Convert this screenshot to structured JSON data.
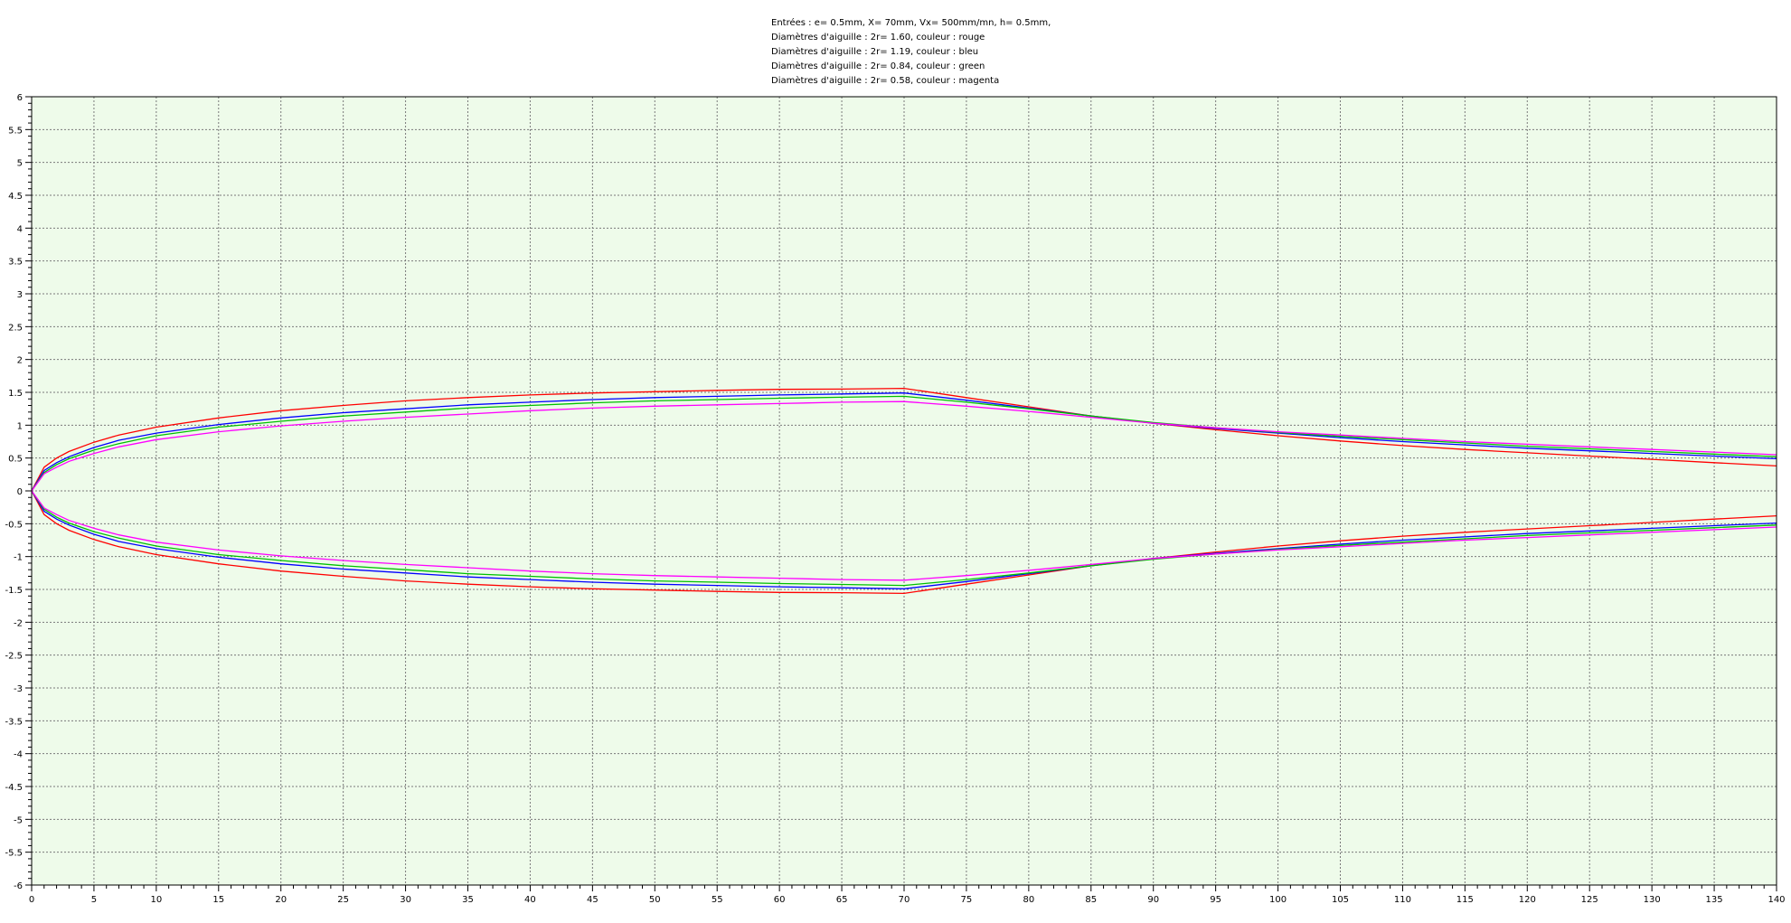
{
  "chart_data": {
    "type": "line",
    "title_lines": [
      "Entrées : e= 0.5mm,  X= 70mm,  Vx= 500mm/mn,  h= 0.5mm,",
      "Diamètres d'aiguille : 2r=  1.60, couleur : rouge",
      "Diamètres d'aiguille : 2r=  1.19, couleur : bleu",
      "Diamètres d'aiguille : 2r=  0.84, couleur : green",
      "Diamètres d'aiguille : 2r=  0.58, couleur : magenta"
    ],
    "xlabel": "",
    "ylabel": "",
    "xlim": [
      0,
      140
    ],
    "ylim": [
      -6,
      6
    ],
    "x_ticks": [
      0,
      5,
      10,
      15,
      20,
      25,
      30,
      35,
      40,
      45,
      50,
      55,
      60,
      65,
      70,
      75,
      80,
      85,
      90,
      95,
      100,
      105,
      110,
      115,
      120,
      125,
      130,
      135,
      140
    ],
    "y_ticks": [
      6,
      5.5,
      5,
      4.5,
      4,
      3.5,
      3,
      2.5,
      2,
      1.5,
      1,
      0.5,
      0,
      -0.5,
      -1,
      -1.5,
      -2,
      -2.5,
      -3,
      -3.5,
      -4,
      -4.5,
      -5,
      -5.5,
      -6
    ],
    "grid": true,
    "background": "#eefbea",
    "symmetric": true,
    "x": [
      0,
      1,
      2,
      3,
      5,
      7,
      10,
      15,
      20,
      25,
      30,
      35,
      40,
      45,
      50,
      55,
      60,
      65,
      70,
      75,
      80,
      85,
      90,
      95,
      100,
      105,
      110,
      115,
      120,
      125,
      130,
      135,
      140
    ],
    "series": [
      {
        "name": "2r= 1.60",
        "color": "#ff0000",
        "y": [
          0,
          0.36,
          0.5,
          0.6,
          0.74,
          0.85,
          0.97,
          1.11,
          1.22,
          1.3,
          1.37,
          1.42,
          1.46,
          1.49,
          1.51,
          1.53,
          1.545,
          1.55,
          1.56,
          1.42,
          1.28,
          1.14,
          1.03,
          0.93,
          0.84,
          0.76,
          0.69,
          0.63,
          0.58,
          0.53,
          0.48,
          0.43,
          0.38
        ]
      },
      {
        "name": "2r= 1.19",
        "color": "#0000ff",
        "y": [
          0,
          0.31,
          0.43,
          0.52,
          0.66,
          0.77,
          0.88,
          1.01,
          1.11,
          1.19,
          1.25,
          1.31,
          1.35,
          1.39,
          1.42,
          1.44,
          1.46,
          1.475,
          1.49,
          1.38,
          1.26,
          1.14,
          1.03,
          0.95,
          0.88,
          0.81,
          0.75,
          0.7,
          0.65,
          0.61,
          0.57,
          0.53,
          0.49
        ]
      },
      {
        "name": "2r= 0.84",
        "color": "#00c000",
        "y": [
          0,
          0.28,
          0.4,
          0.49,
          0.62,
          0.72,
          0.84,
          0.97,
          1.06,
          1.14,
          1.2,
          1.26,
          1.3,
          1.34,
          1.37,
          1.39,
          1.41,
          1.425,
          1.44,
          1.35,
          1.25,
          1.14,
          1.04,
          0.96,
          0.89,
          0.83,
          0.78,
          0.73,
          0.68,
          0.64,
          0.6,
          0.56,
          0.52
        ]
      },
      {
        "name": "2r= 0.58",
        "color": "#ff00ff",
        "y": [
          0,
          0.26,
          0.36,
          0.45,
          0.57,
          0.67,
          0.78,
          0.9,
          0.99,
          1.06,
          1.12,
          1.17,
          1.22,
          1.26,
          1.29,
          1.31,
          1.33,
          1.35,
          1.36,
          1.29,
          1.21,
          1.12,
          1.03,
          0.96,
          0.9,
          0.85,
          0.8,
          0.75,
          0.71,
          0.67,
          0.63,
          0.59,
          0.55
        ]
      }
    ]
  }
}
